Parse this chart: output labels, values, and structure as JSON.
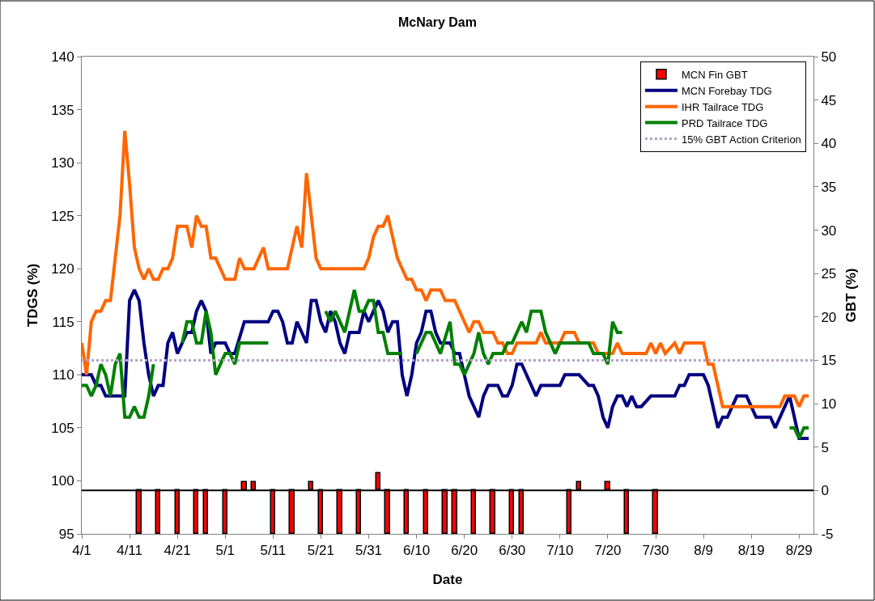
{
  "chart_data": {
    "type": "line",
    "title": "McNary Dam",
    "xlabel": "Date",
    "ylabel": "TDGS (%)",
    "y2label": "GBT (%)",
    "xlim": [
      "--04-01",
      "--09-01"
    ],
    "xticks": [
      {
        "value": "--04-01",
        "label": "4/1"
      },
      {
        "value": "--04-11",
        "label": "4/11"
      },
      {
        "value": "--04-21",
        "label": "4/21"
      },
      {
        "value": "--05-01",
        "label": "5/1"
      },
      {
        "value": "--05-11",
        "label": "5/11"
      },
      {
        "value": "--05-21",
        "label": "5/21"
      },
      {
        "value": "--05-31",
        "label": "5/31"
      },
      {
        "value": "--06-10",
        "label": "6/10"
      },
      {
        "value": "--06-20",
        "label": "6/20"
      },
      {
        "value": "--06-30",
        "label": "6/30"
      },
      {
        "value": "--07-10",
        "label": "7/10"
      },
      {
        "value": "--07-20",
        "label": "7/20"
      },
      {
        "value": "--07-30",
        "label": "7/30"
      },
      {
        "value": "--08-09",
        "label": "8/9"
      },
      {
        "value": "--08-19",
        "label": "8/19"
      },
      {
        "value": "--08-29",
        "label": "8/29"
      }
    ],
    "ylim": [
      95,
      140
    ],
    "yticks": [
      95,
      100,
      105,
      110,
      115,
      120,
      125,
      130,
      135,
      140
    ],
    "y2lim": [
      -5,
      50
    ],
    "y2ticks": [
      -5,
      0,
      5,
      10,
      15,
      20,
      25,
      30,
      35,
      40,
      45,
      50
    ],
    "legend": "top right",
    "marker": "none",
    "line_style": "solid",
    "ref_lines": [
      {
        "axis": "y2",
        "value": 0,
        "label": null,
        "color": "#000000",
        "line_style": "solid"
      },
      {
        "axis": "y2",
        "value": 15,
        "label": "15% GBT Action Criterion",
        "color": "#b3a2c7",
        "line_style": "dotted"
      }
    ],
    "series": [
      {
        "name": "MCN Fin GBT",
        "type": "bar",
        "axis": "y2",
        "color": "#ff0000",
        "x": [
          "--04-13",
          "--04-17",
          "--04-21",
          "--04-25",
          "--04-27",
          "--05-01",
          "--05-05",
          "--05-07",
          "--05-11",
          "--05-15",
          "--05-19",
          "--05-21",
          "--05-25",
          "--05-29",
          "--06-02",
          "--06-04",
          "--06-08",
          "--06-12",
          "--06-16",
          "--06-18",
          "--06-22",
          "--06-26",
          "--06-30",
          "--07-02",
          "--07-12",
          "--07-14",
          "--07-20",
          "--07-24",
          "--07-30"
        ],
        "values": [
          -5,
          -5,
          -5,
          -5,
          -5,
          -5,
          1,
          1,
          -5,
          -5,
          1,
          -5,
          -5,
          -5,
          2,
          -5,
          -5,
          -5,
          -5,
          -5,
          -5,
          -5,
          -5,
          -5,
          -5,
          1,
          1,
          -5,
          -5
        ]
      },
      {
        "name": "MCN Forebay TDG",
        "color": "#000080",
        "x": [
          "--04-01",
          "--04-03",
          "--04-04",
          "--04-05",
          "--04-06",
          "--04-10",
          "--04-11",
          "--04-12",
          "--04-13",
          "--04-14",
          "--04-15",
          "--04-16",
          "--04-17",
          "--04-18",
          "--04-19",
          "--04-20",
          "--04-21",
          "--04-22",
          "--04-23",
          "--04-24",
          "--04-25",
          "--04-26",
          "--04-27",
          "--04-28",
          "--04-29",
          "--05-01",
          "--05-02",
          "--05-03",
          "--05-05",
          "--05-10",
          "--05-11",
          "--05-12",
          "--05-13",
          "--05-14",
          "--05-15",
          "--05-16",
          "--05-18",
          "--05-19",
          "--05-20",
          "--05-21",
          "--05-22",
          "--05-23",
          "--05-24",
          "--05-25",
          "--05-26",
          "--05-27",
          "--05-29",
          "--05-30",
          "--05-31",
          "--06-01",
          "--06-02",
          "--06-03",
          "--06-04",
          "--06-05",
          "--06-06",
          "--06-07",
          "--06-08",
          "--06-09",
          "--06-10",
          "--06-11",
          "--06-12",
          "--06-13",
          "--06-14",
          "--06-15",
          "--06-17",
          "--06-18",
          "--06-19",
          "--06-20",
          "--06-21",
          "--06-22",
          "--06-23",
          "--06-24",
          "--06-25",
          "--06-27",
          "--06-28",
          "--06-29",
          "--06-30",
          "--07-01",
          "--07-02",
          "--07-03",
          "--07-05",
          "--07-06",
          "--07-10",
          "--07-11",
          "--07-14",
          "--07-16",
          "--07-17",
          "--07-18",
          "--07-19",
          "--07-20",
          "--07-21",
          "--07-22",
          "--07-23",
          "--07-24",
          "--07-25",
          "--07-26",
          "--07-27",
          "--07-29",
          "--08-03",
          "--08-04",
          "--08-05",
          "--08-06",
          "--08-09",
          "--08-10",
          "--08-12",
          "--08-13",
          "--08-14",
          "--08-16",
          "--08-18",
          "--08-20",
          "--08-23",
          "--08-24",
          "--08-27",
          "--08-29",
          "--08-31"
        ],
        "values": [
          110,
          110,
          109,
          109,
          108,
          108,
          117,
          118,
          117,
          113,
          110,
          108,
          109,
          109,
          113,
          114,
          112,
          113,
          114,
          114,
          116,
          117,
          116,
          112,
          113,
          113,
          112,
          112,
          115,
          115,
          116,
          116,
          115,
          113,
          113,
          115,
          113,
          117,
          117,
          115,
          114,
          116,
          115,
          113,
          112,
          114,
          114,
          116,
          115,
          116,
          117,
          116,
          114,
          115,
          115,
          110,
          108,
          110,
          113,
          114,
          116,
          116,
          114,
          113,
          113,
          112,
          112,
          110,
          108,
          107,
          106,
          108,
          109,
          109,
          108,
          108,
          109,
          111,
          111,
          110,
          108,
          109,
          109,
          110,
          110,
          109,
          109,
          108,
          106,
          105,
          107,
          108,
          108,
          107,
          108,
          107,
          107,
          108,
          108,
          109,
          109,
          110,
          110,
          109,
          105,
          106,
          106,
          108,
          108,
          106,
          106,
          105,
          108,
          104,
          104
        ]
      },
      {
        "name": "IHR Tailrace TDG",
        "color": "#ff6600",
        "x": [
          "--04-01",
          "--04-02",
          "--04-03",
          "--04-04",
          "--04-05",
          "--04-06",
          "--04-07",
          "--04-08",
          "--04-09",
          "--04-10",
          "--04-11",
          "--04-12",
          "--04-13",
          "--04-14",
          "--04-15",
          "--04-16",
          "--04-17",
          "--04-18",
          "--04-19",
          "--04-20",
          "--04-21",
          "--04-23",
          "--04-24",
          "--04-25",
          "--04-26",
          "--04-27",
          "--04-28",
          "--04-29",
          "--05-01",
          "--05-03",
          "--05-04",
          "--05-05",
          "--05-07",
          "--05-09",
          "--05-10",
          "--05-14",
          "--05-16",
          "--05-17",
          "--05-18",
          "--05-19",
          "--05-20",
          "--05-21",
          "--05-30",
          "--05-31",
          "--06-01",
          "--06-02",
          "--06-03",
          "--06-04",
          "--06-06",
          "--06-07",
          "--06-08",
          "--06-09",
          "--06-10",
          "--06-11",
          "--06-12",
          "--06-13",
          "--06-15",
          "--06-16",
          "--06-18",
          "--06-20",
          "--06-21",
          "--06-22",
          "--06-23",
          "--06-24",
          "--06-26",
          "--06-27",
          "--06-28",
          "--06-29",
          "--06-30",
          "--07-01",
          "--07-05",
          "--07-06",
          "--07-07",
          "--07-10",
          "--07-11",
          "--07-13",
          "--07-14",
          "--07-17",
          "--07-18",
          "--07-21",
          "--07-22",
          "--07-23",
          "--07-28",
          "--07-29",
          "--07-30",
          "--07-31",
          "--08-01",
          "--08-03",
          "--08-04",
          "--08-05",
          "--08-09",
          "--08-10",
          "--08-11",
          "--08-13",
          "--08-25",
          "--08-26",
          "--08-28",
          "--08-29",
          "--08-30",
          "--08-31"
        ],
        "values": [
          113,
          110,
          115,
          116,
          116,
          117,
          117,
          121,
          125,
          133,
          128,
          122,
          120,
          119,
          120,
          119,
          119,
          120,
          120,
          121,
          124,
          124,
          122,
          125,
          124,
          124,
          121,
          121,
          119,
          119,
          121,
          120,
          120,
          122,
          120,
          120,
          124,
          122,
          129,
          125,
          121,
          120,
          120,
          121,
          123,
          124,
          124,
          125,
          121,
          120,
          119,
          119,
          118,
          118,
          117,
          118,
          118,
          117,
          117,
          115,
          114,
          115,
          115,
          114,
          114,
          113,
          113,
          112,
          112,
          113,
          113,
          114,
          113,
          113,
          114,
          114,
          113,
          113,
          112,
          112,
          113,
          112,
          112,
          113,
          112,
          113,
          112,
          113,
          112,
          113,
          113,
          111,
          111,
          107,
          107,
          108,
          108,
          107,
          108,
          108
        ]
      },
      {
        "name": "PRD Tailrace TDG",
        "color": "#008000",
        "x": [
          "--04-01",
          "--04-02",
          "--04-03",
          "--04-04",
          "--04-05",
          "--04-06",
          "--04-07",
          "--04-08",
          "--04-09",
          "--04-10",
          "--04-11",
          "--04-12",
          "--04-13",
          "--04-14",
          "--04-15",
          "--04-16",
          "--04-19",
          "--04-22",
          "--04-23",
          "--04-24",
          "--04-25",
          "--04-26",
          "--04-27",
          "--04-28",
          "--04-29",
          "--05-01",
          "--05-02",
          "--05-03",
          "--05-04",
          "--05-10",
          "--05-16",
          "--05-22",
          "--05-23",
          "--05-24",
          "--05-26",
          "--05-28",
          "--05-29",
          "--05-30",
          "--05-31",
          "--06-01",
          "--06-02",
          "--06-03",
          "--06-04",
          "--06-07",
          "--06-08",
          "--06-10",
          "--06-12",
          "--06-13",
          "--06-15",
          "--06-17",
          "--06-18",
          "--06-19",
          "--06-20",
          "--06-22",
          "--06-23",
          "--06-24",
          "--06-25",
          "--06-26",
          "--06-28",
          "--06-29",
          "--06-30",
          "--07-02",
          "--07-03",
          "--07-04",
          "--07-06",
          "--07-07",
          "--07-09",
          "--07-10",
          "--07-16",
          "--07-17",
          "--07-19",
          "--07-20",
          "--07-21",
          "--07-22",
          "--07-23",
          "--08-09",
          "--08-27",
          "--08-28",
          "--08-29",
          "--08-30",
          "--08-31"
        ],
        "values": [
          109,
          109,
          108,
          109,
          111,
          110,
          108,
          111,
          112,
          106,
          106,
          107,
          106,
          106,
          108,
          111,
          null,
          113,
          115,
          115,
          113,
          113,
          116,
          114,
          110,
          112,
          112,
          111,
          113,
          113,
          null,
          116,
          115,
          116,
          114,
          118,
          116,
          116,
          117,
          117,
          114,
          114,
          112,
          112,
          null,
          112,
          114,
          114,
          112,
          115,
          111,
          111,
          110,
          112,
          114,
          112,
          111,
          112,
          112,
          113,
          113,
          115,
          114,
          116,
          116,
          114,
          112,
          113,
          113,
          112,
          112,
          111,
          115,
          114,
          114,
          null,
          105,
          105,
          104,
          105,
          105
        ]
      }
    ]
  }
}
